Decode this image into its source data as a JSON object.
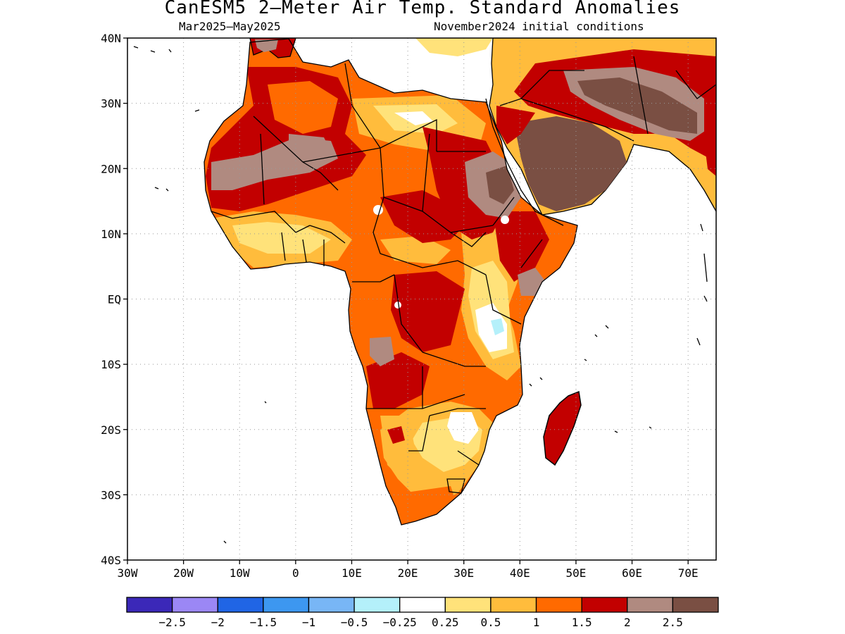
{
  "title": "CanESM5 2–Meter Air Temp. Standard Anomalies",
  "subtitle_left": "Mar2025–May2025",
  "subtitle_right": "November2024 initial conditions",
  "map": {
    "lon_range": [
      -30,
      75
    ],
    "lat_range": [
      -40,
      40
    ],
    "lat_labels": [
      "40N",
      "30N",
      "20N",
      "10N",
      "EQ",
      "10S",
      "20S",
      "30S",
      "40S"
    ],
    "lon_labels": [
      "30W",
      "20W",
      "10W",
      "0",
      "10E",
      "20E",
      "30E",
      "40E",
      "50E",
      "60E",
      "70E"
    ],
    "grid": "dotted",
    "region": "Africa and Arabian Peninsula",
    "ocean_fill": "#ffffff",
    "anomaly_regions": [
      {
        "name": "Sahara warm anomaly",
        "level": "1.5–2"
      },
      {
        "name": "Algeria-Mali anomaly",
        "level": "2–2.5"
      },
      {
        "name": "Arabian Peninsula anomaly",
        "level": ">2.5"
      },
      {
        "name": "Iran anomaly",
        "level": ">2.5"
      },
      {
        "name": "Ethiopia anomaly",
        "level": "2–2.5"
      },
      {
        "name": "Congo anomaly",
        "level": "1.5–2"
      },
      {
        "name": "Madagascar anomaly",
        "level": "1.5–2"
      },
      {
        "name": "Lake Victoria cool spot",
        "level": "-0.5–-0.25"
      },
      {
        "name": "Botswana neutral area",
        "level": "-0.25–0.25"
      }
    ]
  },
  "colorbar": {
    "colors": [
      "#3b28b8",
      "#9b87f5",
      "#2065e5",
      "#3d97f0",
      "#78b6f6",
      "#b4f0fa",
      "#ffffff",
      "#ffe27a",
      "#ffbc3c",
      "#ff6a00",
      "#c20000",
      "#b08a80",
      "#7a4f43"
    ],
    "labels": [
      "−2.5",
      "−2",
      "−1.5",
      "−1",
      "−0.5",
      "−0.25",
      "0.25",
      "0.5",
      "1",
      "1.5",
      "2",
      "2.5"
    ]
  }
}
